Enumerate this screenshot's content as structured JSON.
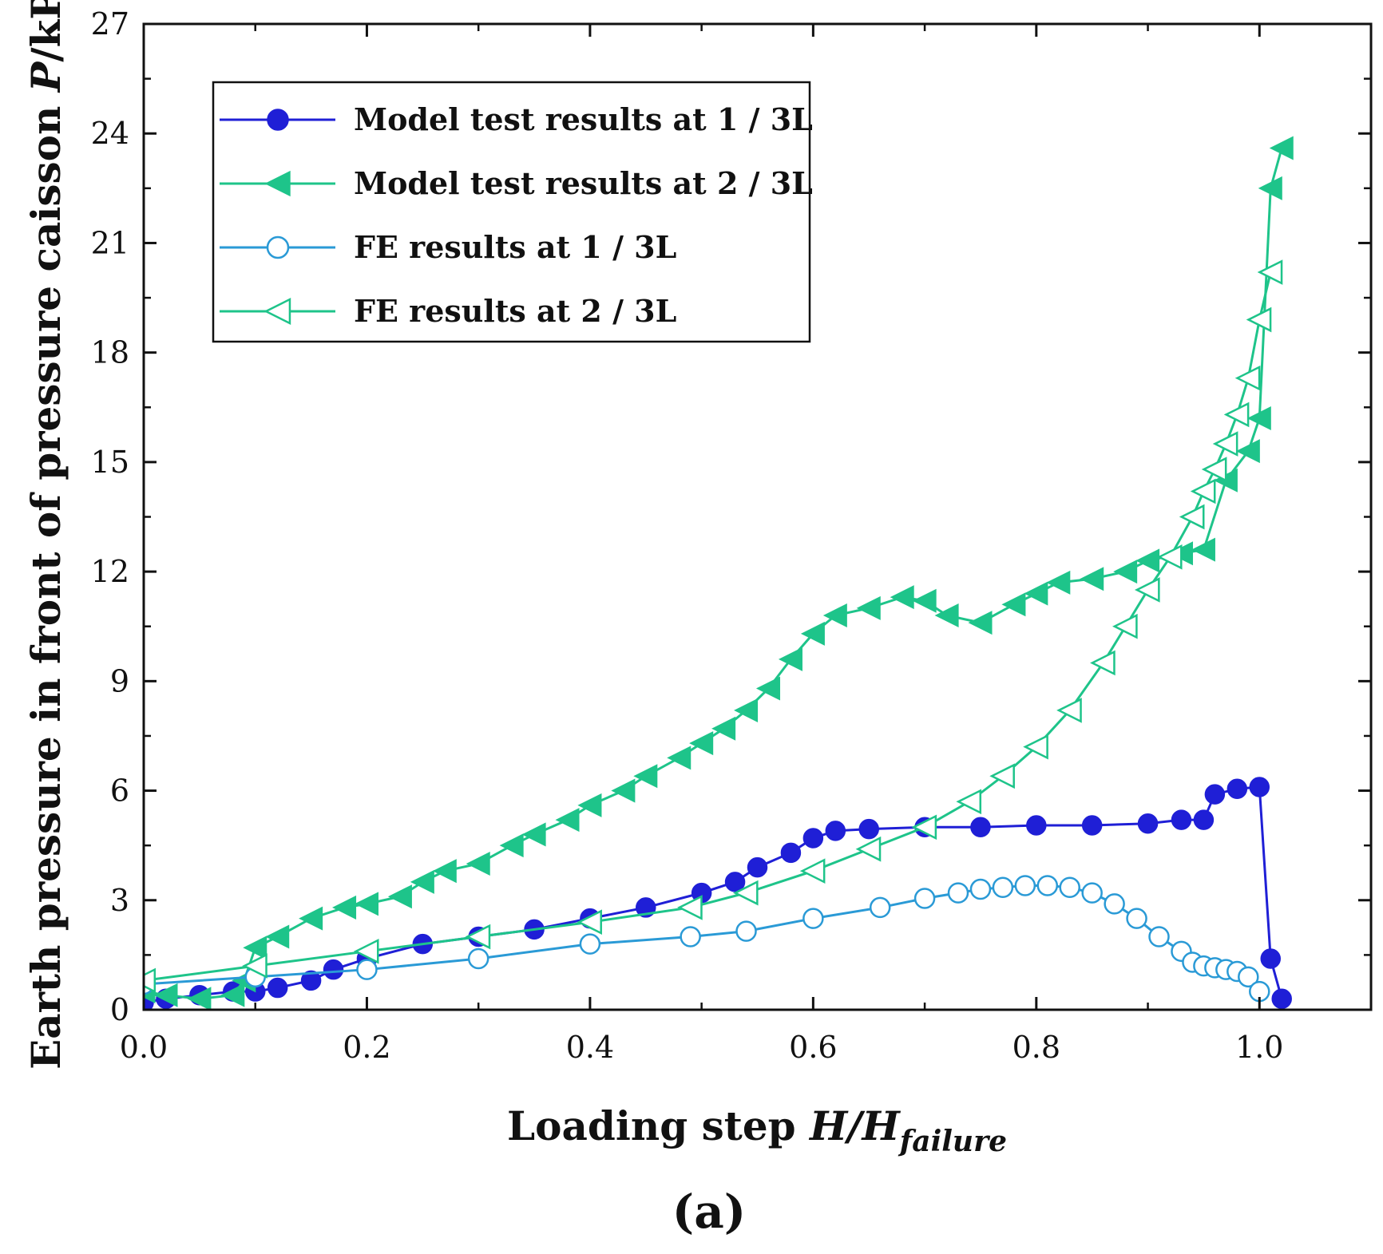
{
  "chart_data": {
    "type": "line",
    "xlabel_main": "Loading step ",
    "xlabel_var": "H/H",
    "xlabel_sub": "failure",
    "ylabel_main": "Earth pressure in front of pressure caisson  ",
    "ylabel_var": "P",
    "ylabel_unit": "/kPa",
    "panel_label": "(a)",
    "xlim": [
      0.0,
      1.1
    ],
    "ylim": [
      0,
      27
    ],
    "x_ticks": [
      "0.0",
      "0.2",
      "0.4",
      "0.6",
      "0.8",
      "1.0"
    ],
    "y_ticks": [
      "0",
      "3",
      "6",
      "9",
      "12",
      "15",
      "18",
      "21",
      "24",
      "27"
    ],
    "legend_position": "top-left",
    "grid": false,
    "series": [
      {
        "name": "Model test results at 1 / 3L",
        "color": "#1f1fd6",
        "marker": "filled-circle",
        "x": [
          0.0,
          0.02,
          0.05,
          0.08,
          0.1,
          0.12,
          0.15,
          0.17,
          0.2,
          0.25,
          0.3,
          0.35,
          0.4,
          0.45,
          0.5,
          0.53,
          0.55,
          0.58,
          0.6,
          0.62,
          0.65,
          0.7,
          0.75,
          0.8,
          0.85,
          0.9,
          0.93,
          0.95,
          0.96,
          0.98,
          1.0,
          1.01,
          1.02
        ],
        "y": [
          0.2,
          0.3,
          0.4,
          0.5,
          0.5,
          0.6,
          0.8,
          1.1,
          1.4,
          1.8,
          2.0,
          2.2,
          2.5,
          2.8,
          3.2,
          3.5,
          3.9,
          4.3,
          4.7,
          4.9,
          4.95,
          5.0,
          5.0,
          5.05,
          5.05,
          5.1,
          5.2,
          5.2,
          5.9,
          6.05,
          6.1,
          1.4,
          0.3
        ]
      },
      {
        "name": "Model test results at 2 / 3L",
        "color": "#1ec48a",
        "marker": "filled-triangle-left",
        "x": [
          0.0,
          0.02,
          0.05,
          0.08,
          0.09,
          0.1,
          0.12,
          0.15,
          0.18,
          0.2,
          0.23,
          0.25,
          0.27,
          0.3,
          0.33,
          0.35,
          0.38,
          0.4,
          0.43,
          0.45,
          0.48,
          0.5,
          0.52,
          0.54,
          0.56,
          0.58,
          0.6,
          0.62,
          0.65,
          0.68,
          0.7,
          0.72,
          0.75,
          0.78,
          0.8,
          0.82,
          0.85,
          0.88,
          0.9,
          0.93,
          0.95,
          0.97,
          0.99,
          1.0,
          1.01,
          1.02
        ],
        "y": [
          0.5,
          0.4,
          0.3,
          0.4,
          0.8,
          1.7,
          2.0,
          2.5,
          2.8,
          2.9,
          3.1,
          3.5,
          3.8,
          4.0,
          4.5,
          4.8,
          5.2,
          5.6,
          6.0,
          6.4,
          6.9,
          7.3,
          7.7,
          8.2,
          8.8,
          9.6,
          10.3,
          10.8,
          11.0,
          11.3,
          11.2,
          10.8,
          10.6,
          11.1,
          11.4,
          11.7,
          11.8,
          12.0,
          12.3,
          12.5,
          12.6,
          14.5,
          15.3,
          16.2,
          22.5,
          23.6
        ]
      },
      {
        "name": "FE  results at 1 / 3L",
        "color": "#2a9ad6",
        "marker": "open-circle",
        "x": [
          0.0,
          0.1,
          0.2,
          0.3,
          0.4,
          0.49,
          0.54,
          0.6,
          0.66,
          0.7,
          0.73,
          0.75,
          0.77,
          0.79,
          0.81,
          0.83,
          0.85,
          0.87,
          0.89,
          0.91,
          0.93,
          0.94,
          0.95,
          0.96,
          0.97,
          0.98,
          0.99,
          1.0
        ],
        "y": [
          0.7,
          0.9,
          1.1,
          1.4,
          1.8,
          2.0,
          2.15,
          2.5,
          2.8,
          3.05,
          3.2,
          3.3,
          3.35,
          3.4,
          3.4,
          3.35,
          3.2,
          2.9,
          2.5,
          2.0,
          1.6,
          1.3,
          1.2,
          1.15,
          1.1,
          1.05,
          0.9,
          0.5
        ]
      },
      {
        "name": "FE  results at 2 / 3L",
        "color": "#1ec48a",
        "marker": "open-triangle-left",
        "x": [
          0.0,
          0.1,
          0.2,
          0.3,
          0.4,
          0.49,
          0.54,
          0.6,
          0.65,
          0.7,
          0.74,
          0.77,
          0.8,
          0.83,
          0.86,
          0.88,
          0.9,
          0.92,
          0.94,
          0.95,
          0.96,
          0.97,
          0.98,
          0.99,
          1.0,
          1.01
        ],
        "y": [
          0.8,
          1.2,
          1.6,
          2.0,
          2.4,
          2.8,
          3.2,
          3.8,
          4.4,
          5.0,
          5.7,
          6.4,
          7.2,
          8.2,
          9.5,
          10.5,
          11.5,
          12.4,
          13.5,
          14.2,
          14.8,
          15.5,
          16.3,
          17.3,
          18.9,
          20.2
        ]
      }
    ]
  }
}
